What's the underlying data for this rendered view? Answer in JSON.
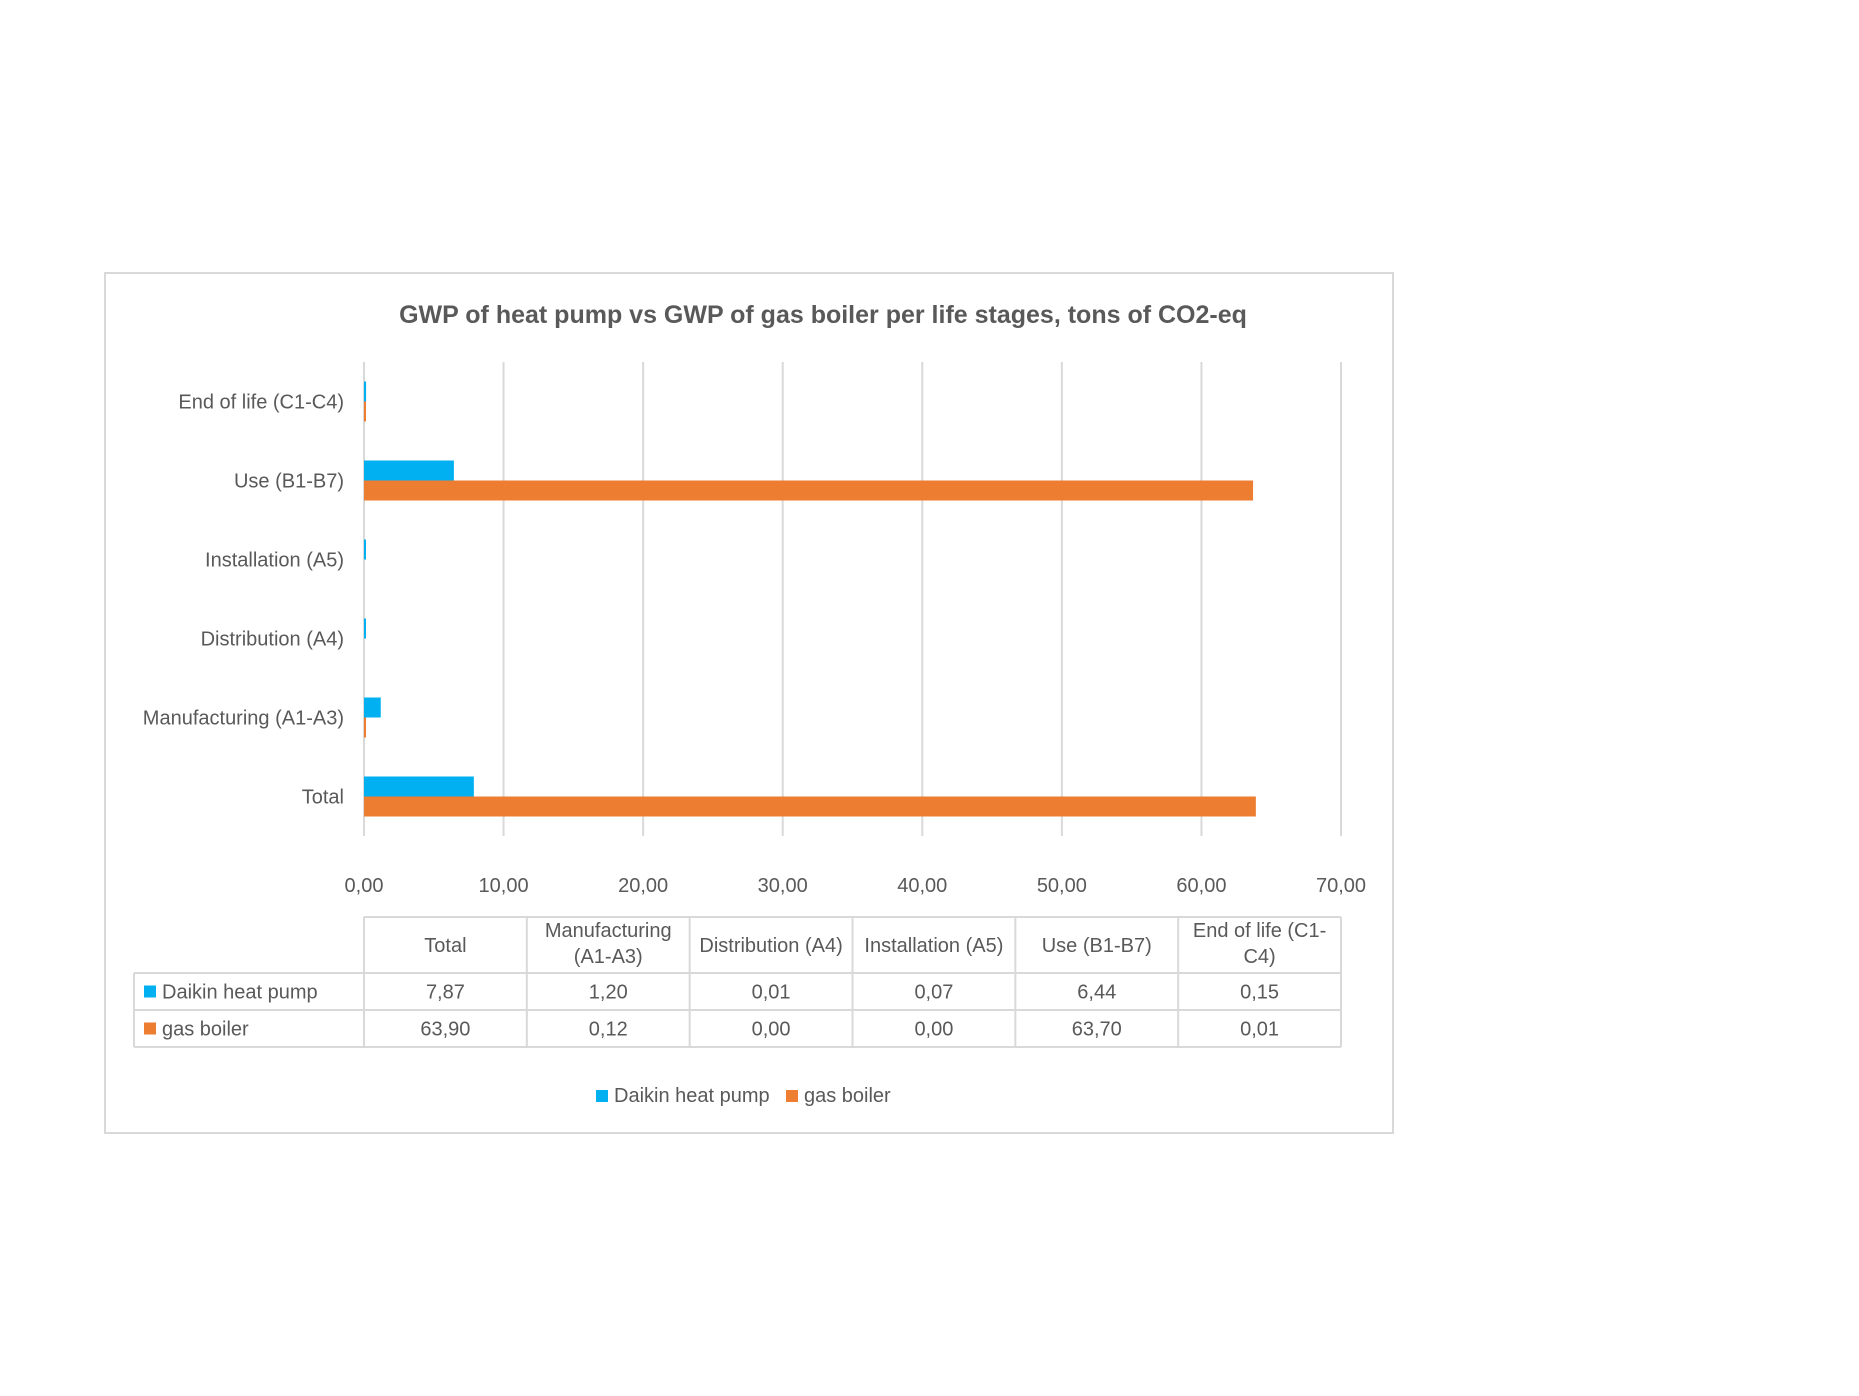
{
  "chart_data": {
    "type": "bar",
    "orientation": "horizontal",
    "title": "GWP of heat pump vs GWP of gas boiler per life stages, tons of CO2-eq",
    "categories": [
      "Total",
      "Manufacturing (A1-A3)",
      "Distribution (A4)",
      "Installation (A5)",
      "Use (B1-B7)",
      "End of life (C1-C4)"
    ],
    "series": [
      {
        "name": "Daikin heat pump",
        "color": "#00b0f0",
        "values": [
          7.87,
          1.2,
          0.01,
          0.07,
          6.44,
          0.15
        ]
      },
      {
        "name": "gas boiler",
        "color": "#ed7d31",
        "values": [
          63.9,
          0.12,
          0.0,
          0.0,
          63.7,
          0.01
        ]
      }
    ],
    "xlim": [
      0,
      70
    ],
    "xticks": [
      0,
      10,
      20,
      30,
      40,
      50,
      60,
      70
    ],
    "tick_labels": [
      "0,00",
      "10,00",
      "20,00",
      "30,00",
      "40,00",
      "50,00",
      "60,00",
      "70,00"
    ],
    "grid": true,
    "legend": "bottom",
    "data_table": {
      "headers": [
        [
          "Total"
        ],
        [
          "Manufacturing",
          "(A1-A3)"
        ],
        [
          "Distribution (A4)"
        ],
        [
          "Installation (A5)"
        ],
        [
          "Use (B1-B7)"
        ],
        [
          "End of life (C1-",
          "C4)"
        ]
      ],
      "rows": [
        {
          "series": "Daikin heat pump",
          "cells": [
            "7,87",
            "1,20",
            "0,01",
            "0,07",
            "6,44",
            "0,15"
          ]
        },
        {
          "series": "gas boiler",
          "cells": [
            "63,90",
            "0,12",
            "0,00",
            "0,00",
            "63,70",
            "0,01"
          ]
        }
      ]
    }
  }
}
